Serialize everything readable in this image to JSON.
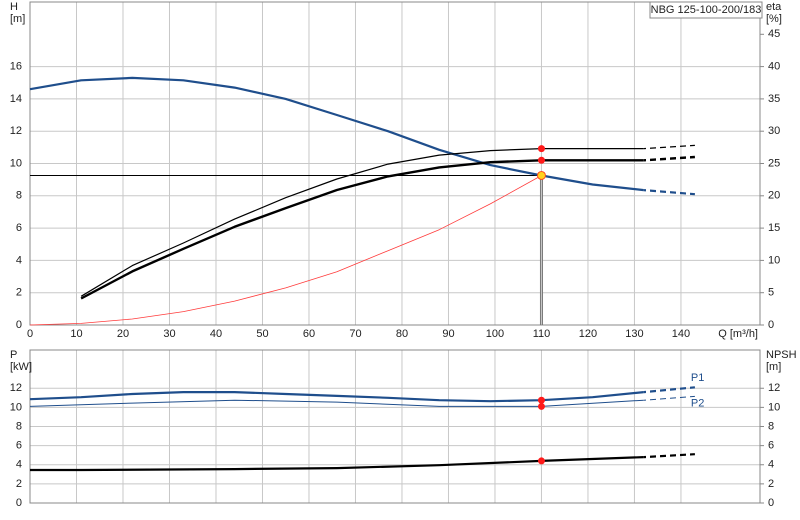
{
  "chart_data": [
    {
      "type": "line",
      "title": "NBG 125-100-200/183",
      "ylabel": "H",
      "yunit": "[m]",
      "y2label": "eta",
      "y2unit": "[%]",
      "xlabel": "Q [m³/h]",
      "xlim": [
        0,
        157
      ],
      "xticks": [
        0,
        10,
        20,
        30,
        40,
        50,
        60,
        70,
        80,
        90,
        100,
        110,
        120,
        130,
        140
      ],
      "ylim": [
        0,
        20
      ],
      "yticks": [
        0,
        2,
        4,
        6,
        8,
        10,
        12,
        14,
        16
      ],
      "y2lim": [
        0,
        50
      ],
      "y2ticks": [
        0,
        5,
        10,
        15,
        20,
        25,
        30,
        35,
        40,
        45
      ],
      "grid": true,
      "series": [
        {
          "color": "#1f4e8c",
          "width": 2.2,
          "dashed_from": 132,
          "x": [
            0,
            11,
            22,
            33,
            44,
            55,
            66,
            77,
            88,
            99,
            110,
            121,
            132,
            143
          ],
          "values": [
            14.6,
            15.15,
            15.3,
            15.15,
            14.7,
            14.0,
            13.0,
            12.0,
            10.85,
            9.9,
            9.26,
            8.7,
            8.35,
            8.1
          ]
        },
        {
          "color": "#000000",
          "width": 1.2,
          "axis": "y2",
          "dashed_from": 132,
          "x": [
            11,
            22,
            33,
            44,
            55,
            66,
            77,
            88,
            99,
            110,
            132,
            143
          ],
          "values": [
            4.45,
            9.2,
            12.7,
            16.4,
            19.7,
            22.6,
            24.9,
            26.3,
            27.0,
            27.3,
            27.3,
            27.8
          ]
        },
        {
          "color": "#000000",
          "width": 2.4,
          "axis": "y2",
          "dashed_from": 132,
          "x": [
            11,
            22,
            33,
            44,
            55,
            66,
            77,
            88,
            99,
            110,
            132,
            143
          ],
          "values": [
            4.1,
            8.3,
            11.8,
            15.2,
            18.1,
            20.9,
            23.0,
            24.4,
            25.2,
            25.5,
            25.5,
            26.0
          ]
        },
        {
          "color": "#ff3b3b",
          "width": 0.8,
          "x": [
            0,
            11,
            22,
            33,
            44,
            55,
            66,
            77,
            88,
            99,
            110
          ],
          "values": [
            0,
            0.1,
            0.37,
            0.83,
            1.48,
            2.3,
            3.3,
            4.6,
            5.9,
            7.5,
            9.26
          ]
        }
      ],
      "duty_point": {
        "x": 110,
        "y": 9.26,
        "color": "#ffd21f"
      },
      "points": [
        {
          "x": 110,
          "y": 27.3,
          "axis": "y2",
          "color": "#ff1a1a"
        },
        {
          "x": 110,
          "y": 25.5,
          "axis": "y2",
          "color": "#ff1a1a"
        }
      ]
    },
    {
      "type": "line",
      "ylabel": "P",
      "yunit": "[kW]",
      "y2label": "NPSH",
      "y2unit": "[m]",
      "xlim": [
        0,
        157
      ],
      "xticks": [
        0,
        10,
        20,
        30,
        40,
        50,
        60,
        70,
        80,
        90,
        100,
        110,
        120,
        130,
        140
      ],
      "ylim": [
        0,
        16
      ],
      "yticks": [
        0,
        2,
        4,
        6,
        8,
        10,
        12
      ],
      "y2lim": [
        0,
        16
      ],
      "y2ticks": [
        0,
        2,
        4,
        6,
        8,
        10,
        12
      ],
      "grid": true,
      "series": [
        {
          "name": "P1",
          "color": "#1f4e8c",
          "width": 2.2,
          "dashed_from": 132,
          "x": [
            0,
            11,
            22,
            33,
            44,
            55,
            66,
            77,
            88,
            99,
            110,
            121,
            132,
            143
          ],
          "values": [
            10.86,
            11.06,
            11.4,
            11.6,
            11.6,
            11.4,
            11.2,
            11.0,
            10.75,
            10.65,
            10.75,
            11.06,
            11.6,
            12.1
          ]
        },
        {
          "name": "P2",
          "color": "#1f4e8c",
          "width": 1,
          "dashed_from": 132,
          "x": [
            0,
            22,
            44,
            66,
            88,
            110,
            132,
            143
          ],
          "values": [
            10.1,
            10.45,
            10.75,
            10.55,
            10.1,
            10.1,
            10.75,
            11.15
          ]
        },
        {
          "color": "#000000",
          "width": 2.2,
          "axis": "y2",
          "dashed_from": 132,
          "x": [
            0,
            11,
            44,
            66,
            88,
            110,
            132,
            143
          ],
          "values": [
            3.45,
            3.45,
            3.55,
            3.65,
            3.95,
            4.4,
            4.8,
            5.1
          ]
        }
      ],
      "points": [
        {
          "x": 110,
          "y": 10.75,
          "color": "#ff1a1a"
        },
        {
          "x": 110,
          "y": 10.1,
          "color": "#ff1a1a"
        },
        {
          "x": 110,
          "y": 4.4,
          "axis": "y2",
          "color": "#ff1a1a"
        }
      ]
    }
  ]
}
